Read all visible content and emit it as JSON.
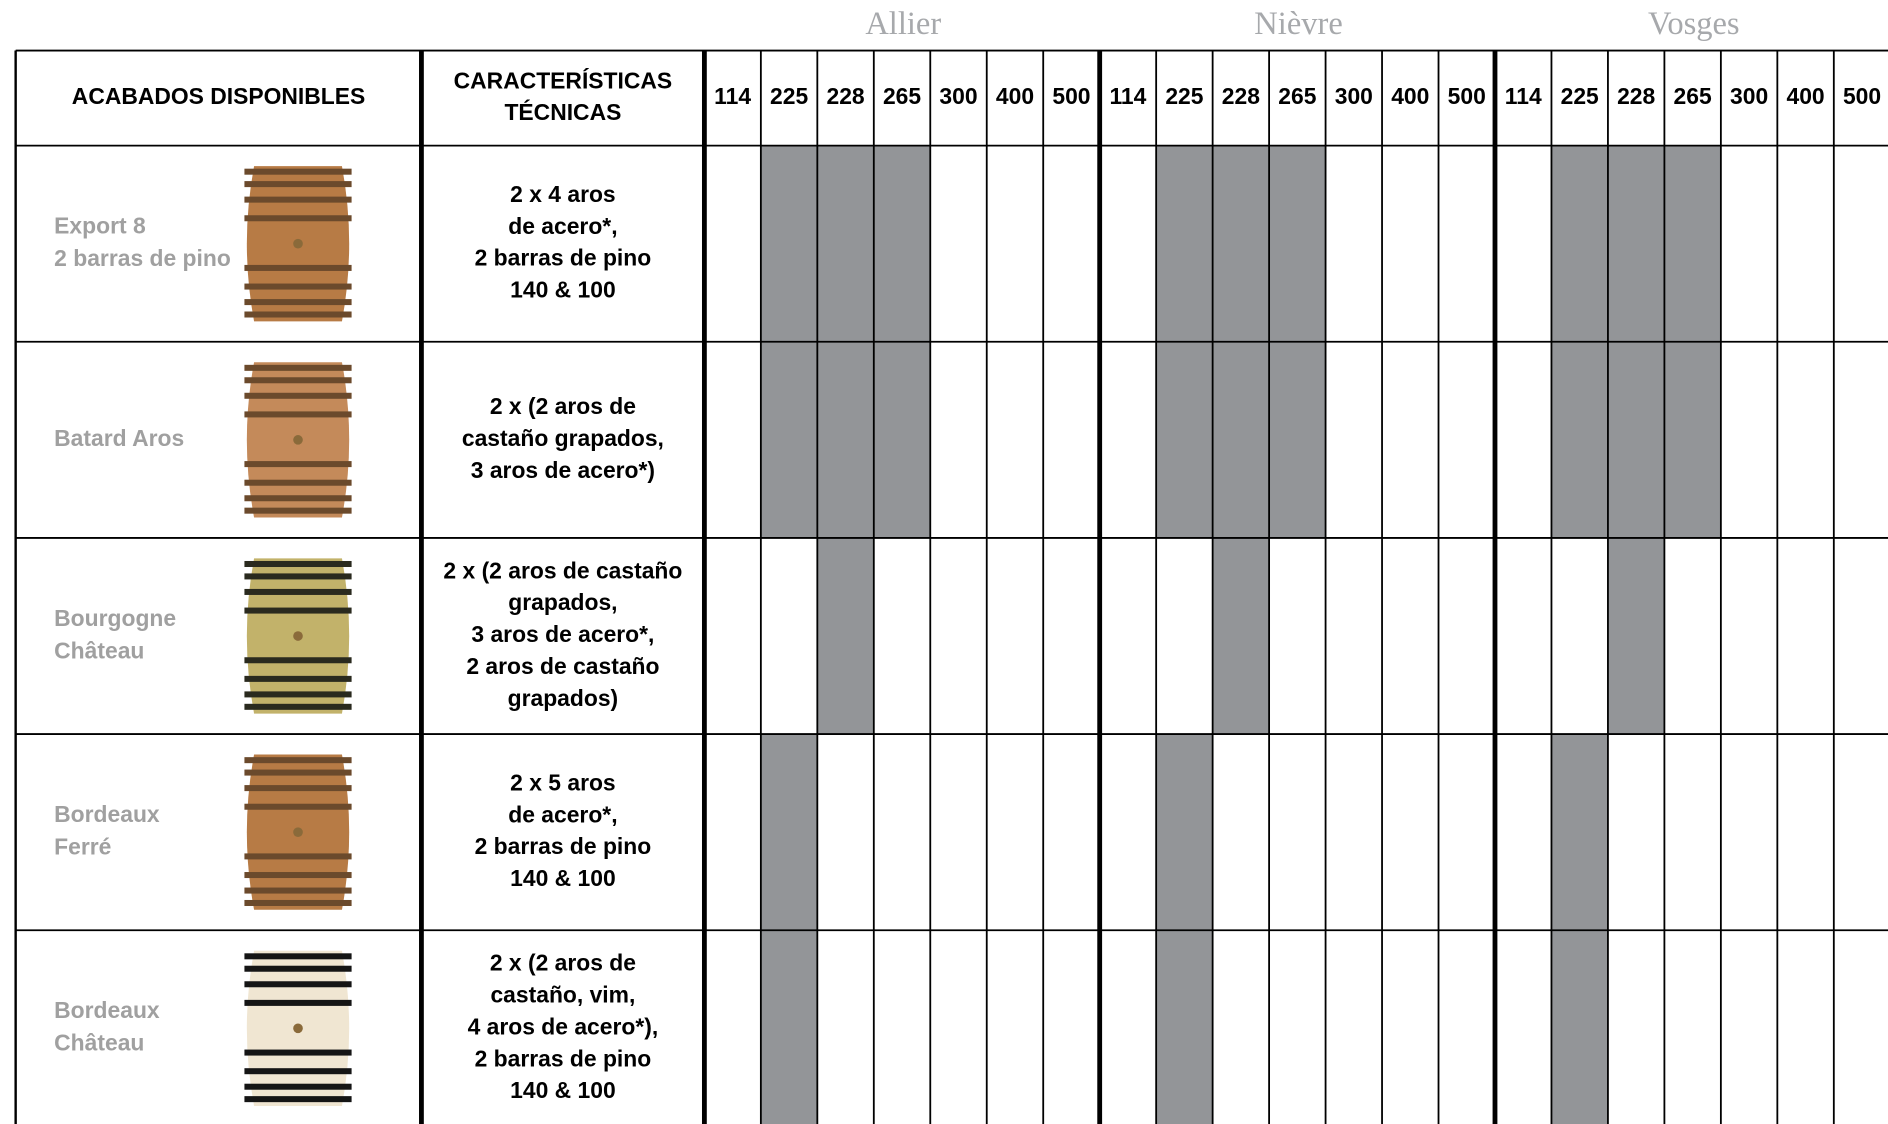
{
  "header": {
    "finishes_label": "ACABADOS DISPONIBLES",
    "specs_label": [
      "CARACTERÍSTICAS",
      "TÉCNICAS"
    ],
    "groups": [
      {
        "name": "Allier",
        "sizes": [
          "114",
          "225",
          "228",
          "265",
          "300",
          "400",
          "500"
        ]
      },
      {
        "name": "Nièvre",
        "sizes": [
          "114",
          "225",
          "228",
          "265",
          "300",
          "400",
          "500"
        ]
      },
      {
        "name": "Vosges",
        "sizes": [
          "114",
          "225",
          "228",
          "265",
          "300",
          "400",
          "500"
        ]
      }
    ]
  },
  "rows": [
    {
      "name": [
        "Export 8",
        "2 barras de pino"
      ],
      "specs": [
        "2 x 4 aros",
        "de acero*,",
        "2 barras de pino",
        "140 & 100"
      ],
      "available": [
        [
          false,
          true,
          true,
          true,
          false,
          false,
          false
        ],
        [
          false,
          true,
          true,
          true,
          false,
          false,
          false
        ],
        [
          false,
          true,
          true,
          true,
          false,
          false,
          false
        ]
      ]
    },
    {
      "name": [
        "Batard Aros"
      ],
      "specs": [
        "2 x (2 aros de",
        "castaño grapados,",
        "3 aros de acero*)"
      ],
      "available": [
        [
          false,
          true,
          true,
          true,
          false,
          false,
          false
        ],
        [
          false,
          true,
          true,
          true,
          false,
          false,
          false
        ],
        [
          false,
          true,
          true,
          true,
          false,
          false,
          false
        ]
      ]
    },
    {
      "name": [
        "Bourgogne",
        "Château"
      ],
      "specs": [
        "2 x (2 aros de castaño",
        "grapados,",
        "3 aros de acero*,",
        "2 aros de castaño",
        "grapados)"
      ],
      "available": [
        [
          false,
          false,
          true,
          false,
          false,
          false,
          false
        ],
        [
          false,
          false,
          true,
          false,
          false,
          false,
          false
        ],
        [
          false,
          false,
          true,
          false,
          false,
          false,
          false
        ]
      ]
    },
    {
      "name": [
        "Bordeaux",
        "Ferré"
      ],
      "specs": [
        "2 x 5 aros",
        "de acero*,",
        "2 barras de pino",
        "140 & 100"
      ],
      "available": [
        [
          false,
          true,
          false,
          false,
          false,
          false,
          false
        ],
        [
          false,
          true,
          false,
          false,
          false,
          false,
          false
        ],
        [
          false,
          true,
          false,
          false,
          false,
          false,
          false
        ]
      ]
    },
    {
      "name": [
        "Bordeaux",
        "Château"
      ],
      "specs": [
        "2 x (2 aros de",
        "castaño, vim,",
        "4 aros de acero*),",
        "2 barras de pino",
        "140 & 100"
      ],
      "available": [
        [
          false,
          true,
          false,
          false,
          false,
          false,
          false
        ],
        [
          false,
          true,
          false,
          false,
          false,
          false,
          false
        ],
        [
          false,
          true,
          false,
          false,
          false,
          false,
          false
        ]
      ]
    }
  ]
}
